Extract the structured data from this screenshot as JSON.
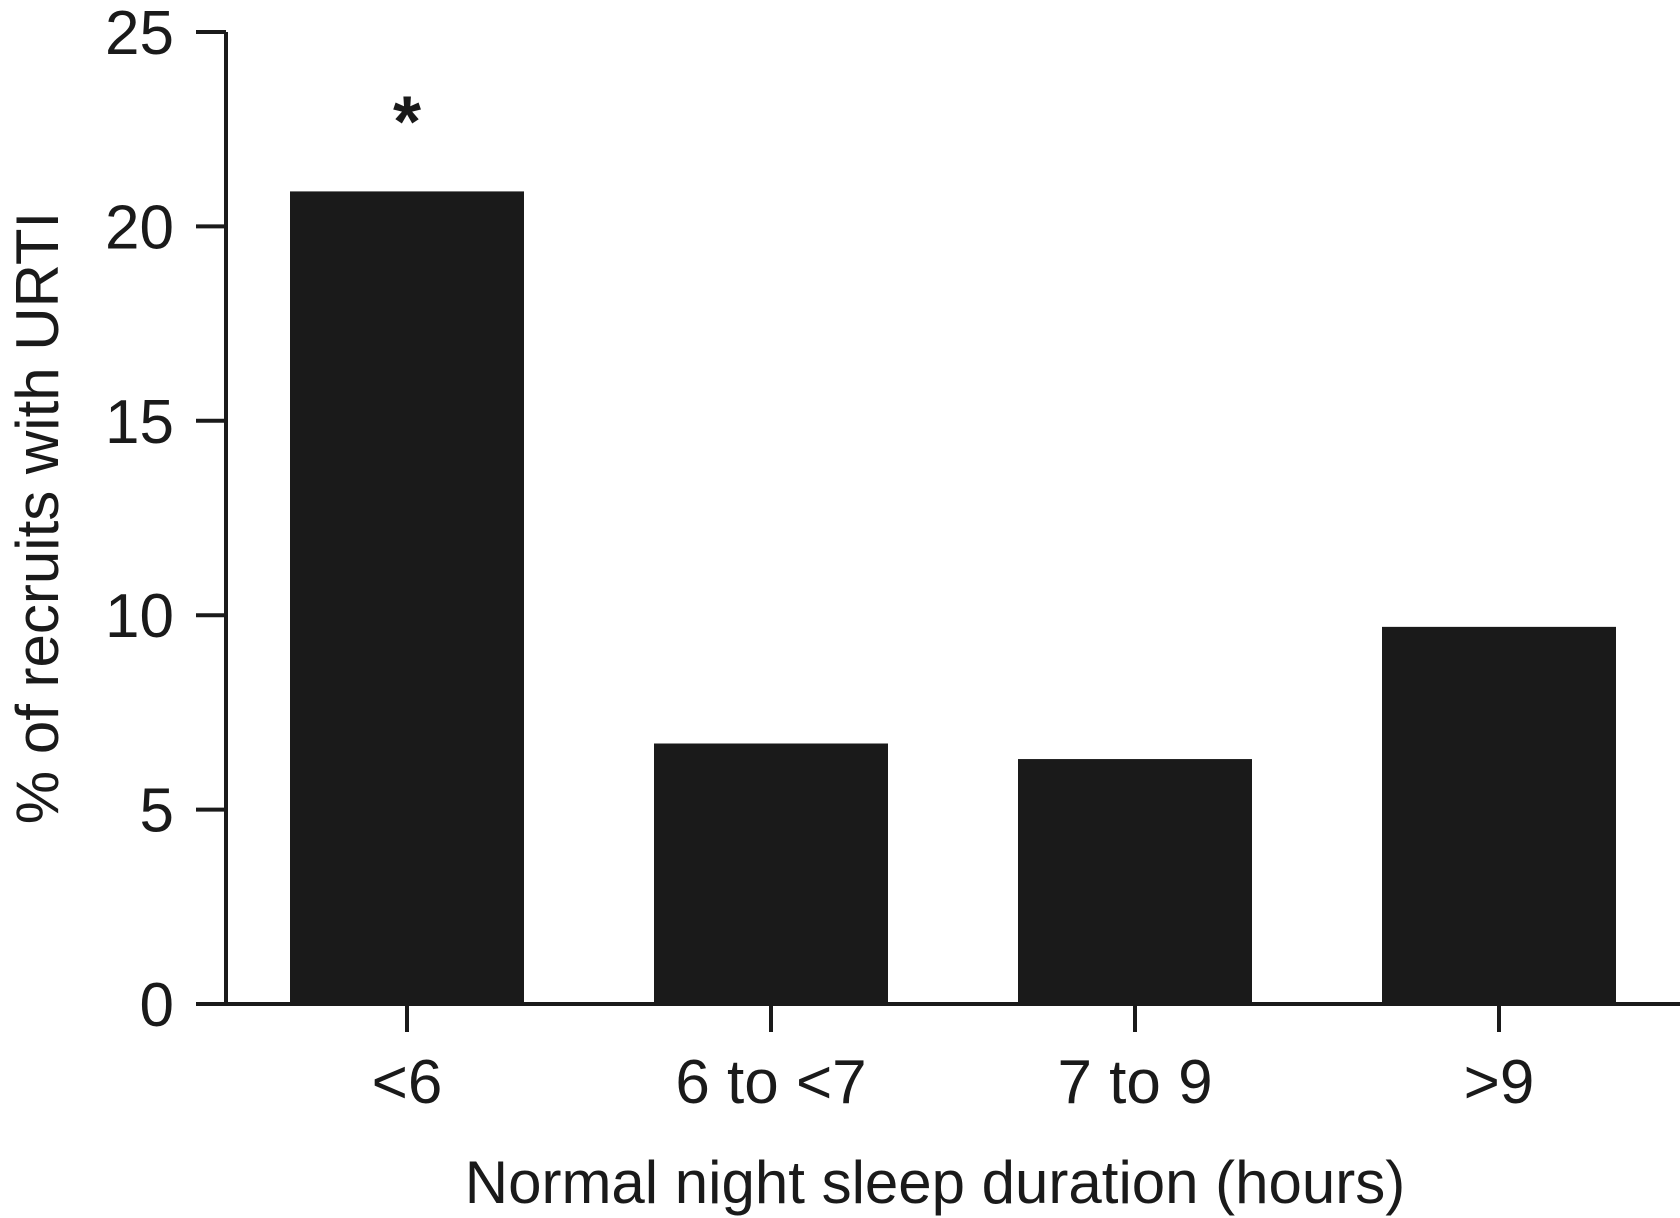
{
  "chart_data": {
    "type": "bar",
    "categories": [
      "<6",
      "6 to <7",
      "7 to 9",
      ">9"
    ],
    "values": [
      20.9,
      6.7,
      6.3,
      9.7
    ],
    "title": "",
    "xlabel": "Normal night sleep duration (hours)",
    "ylabel": "% of recruits with URTI",
    "ylim": [
      0,
      25
    ],
    "yticks": [
      "0",
      "5",
      "10",
      "15",
      "20",
      "25"
    ],
    "annotations": [
      {
        "category": "<6",
        "text": "*"
      }
    ],
    "grid": false,
    "legend": "none",
    "bar_color": "#1a1a1a"
  }
}
